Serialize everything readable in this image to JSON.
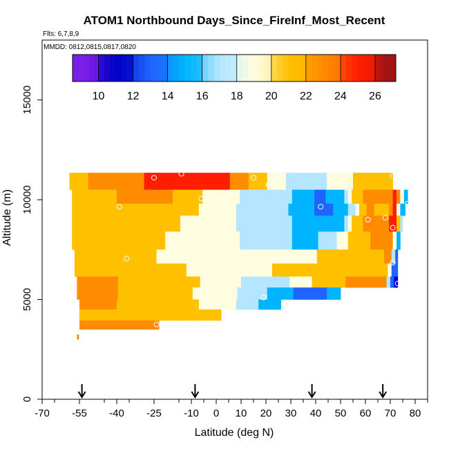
{
  "chart_data": {
    "type": "heatmap",
    "title": "ATOM1 Northbound Days_Since_FireInf_Most_Recent",
    "flights_label": "Flts: 6,7,8,9",
    "mmdd_label": "MMDD: 0812,0815,0817,0820",
    "xlabel": "Latitude (deg N)",
    "ylabel": "Altitude (m)",
    "xlim": [
      -70,
      85
    ],
    "ylim": [
      0,
      18000
    ],
    "x_ticks": [
      -70,
      -55,
      -40,
      -25,
      -10,
      0,
      10,
      20,
      30,
      40,
      50,
      60,
      70,
      80
    ],
    "x_tick_labels": [
      "-70",
      "-55",
      "-40",
      "-25",
      "-10",
      "0",
      "10",
      "20",
      "30",
      "40",
      "50",
      "60",
      "70",
      "80"
    ],
    "y_ticks": [
      0,
      5000,
      10000,
      15000
    ],
    "y_tick_labels": [
      "0",
      "5000",
      "10000",
      "15000"
    ],
    "colorbar": {
      "min": 8.5,
      "max": 27.2,
      "ticks": [
        10,
        12,
        14,
        16,
        18,
        20,
        22,
        24,
        26
      ],
      "tick_labels": [
        "10",
        "12",
        "14",
        "16",
        "18",
        "20",
        "22",
        "24",
        "26"
      ],
      "bin_edges": [
        8.5,
        10,
        12,
        14,
        16,
        18,
        20,
        22,
        24,
        26,
        27.2
      ],
      "colors": [
        "#7a1fe6",
        "#0000c8",
        "#1e64ff",
        "#00b4ff",
        "#b4e6ff",
        "#fffde0",
        "#ffc000",
        "#ff8c00",
        "#ff1e00",
        "#a01414"
      ]
    },
    "rows": [
      {
        "alt": [
          10500,
          11350
        ],
        "x": [
          -59,
          71
        ],
        "knots": [
          [
            -59,
            21.6
          ],
          [
            -35,
            23
          ],
          [
            -25,
            24.5
          ],
          [
            -10,
            25.5
          ],
          [
            5,
            24
          ],
          [
            20,
            20
          ],
          [
            30,
            17.5
          ],
          [
            45,
            18
          ],
          [
            60,
            21
          ],
          [
            71,
            22
          ]
        ]
      },
      {
        "alt": [
          9800,
          10500
        ],
        "x": [
          -58,
          77
        ],
        "knots": [
          [
            -58,
            21
          ],
          [
            -40,
            22
          ],
          [
            -20,
            22.5
          ],
          [
            -8,
            20.5
          ],
          [
            0,
            18.8
          ],
          [
            20,
            17
          ],
          [
            33,
            15.8
          ],
          [
            42,
            13.5
          ],
          [
            50,
            15
          ],
          [
            55,
            20
          ],
          [
            62,
            23.5
          ],
          [
            68,
            22
          ],
          [
            72,
            25
          ],
          [
            75,
            18
          ],
          [
            77,
            14
          ]
        ]
      },
      {
        "alt": [
          9200,
          9800
        ],
        "x": [
          -58,
          76
        ],
        "knots": [
          [
            -58,
            21
          ],
          [
            -40,
            21.5
          ],
          [
            -20,
            21.5
          ],
          [
            -5,
            19.8
          ],
          [
            5,
            18.2
          ],
          [
            25,
            16.5
          ],
          [
            35,
            15
          ],
          [
            42,
            13.5
          ],
          [
            52,
            14.5
          ],
          [
            57,
            19
          ],
          [
            62,
            23
          ],
          [
            68,
            20
          ],
          [
            72,
            24.5
          ],
          [
            74,
            17
          ],
          [
            76,
            14
          ]
        ]
      },
      {
        "alt": [
          8400,
          9200
        ],
        "x": [
          -58,
          75
        ],
        "knots": [
          [
            -58,
            21
          ],
          [
            -40,
            21
          ],
          [
            -20,
            20.5
          ],
          [
            -2,
            19
          ],
          [
            10,
            17.8
          ],
          [
            30,
            16.2
          ],
          [
            40,
            14.3
          ],
          [
            50,
            15
          ],
          [
            55,
            20.5
          ],
          [
            62,
            23.5
          ],
          [
            68,
            22
          ],
          [
            72,
            26
          ],
          [
            74,
            18
          ],
          [
            75,
            14
          ]
        ]
      },
      {
        "alt": [
          7500,
          8400
        ],
        "x": [
          -58,
          74
        ],
        "knots": [
          [
            -58,
            21
          ],
          [
            -40,
            20.5
          ],
          [
            -20,
            20
          ],
          [
            0,
            18.8
          ],
          [
            20,
            17.2
          ],
          [
            38,
            15.2
          ],
          [
            45,
            17
          ],
          [
            55,
            20.5
          ],
          [
            65,
            22.5
          ],
          [
            70,
            24
          ],
          [
            72,
            19
          ],
          [
            74,
            13
          ]
        ]
      },
      {
        "alt": [
          6800,
          7500
        ],
        "x": [
          -57,
          73
        ],
        "knots": [
          [
            -57,
            21.5
          ],
          [
            -40,
            21
          ],
          [
            -20,
            19.8
          ],
          [
            0,
            18.6
          ],
          [
            25,
            18.2
          ],
          [
            40,
            20
          ],
          [
            55,
            21.5
          ],
          [
            67,
            22
          ],
          [
            70,
            24
          ],
          [
            72,
            14
          ],
          [
            73,
            12
          ]
        ]
      },
      {
        "alt": [
          6150,
          6800
        ],
        "x": [
          -57,
          73
        ],
        "knots": [
          [
            -57,
            22
          ],
          [
            -40,
            21.5
          ],
          [
            -20,
            20.5
          ],
          [
            0,
            19.2
          ],
          [
            20,
            19.8
          ],
          [
            40,
            21.5
          ],
          [
            60,
            22
          ],
          [
            69,
            21.5
          ],
          [
            71,
            14
          ],
          [
            73,
            12
          ]
        ]
      },
      {
        "alt": [
          5600,
          6150
        ],
        "x": [
          -56,
          73
        ],
        "knots": [
          [
            -56,
            22
          ],
          [
            -40,
            22
          ],
          [
            -20,
            21
          ],
          [
            0,
            19.5
          ],
          [
            14,
            17.5
          ],
          [
            22,
            16
          ],
          [
            30,
            18
          ],
          [
            45,
            21.5
          ],
          [
            60,
            22.5
          ],
          [
            68,
            22
          ],
          [
            70,
            15
          ],
          [
            72,
            12
          ],
          [
            73,
            10
          ]
        ]
      },
      {
        "alt": [
          5000,
          5600
        ],
        "x": [
          -56,
          50
        ],
        "knots": [
          [
            -56,
            22
          ],
          [
            -40,
            22
          ],
          [
            -20,
            21
          ],
          [
            0,
            19.2
          ],
          [
            12,
            17.5
          ],
          [
            25,
            15
          ],
          [
            35,
            13.5
          ],
          [
            45,
            14
          ],
          [
            50,
            14
          ]
        ]
      },
      {
        "alt": [
          4500,
          5000
        ],
        "x": [
          -55,
          26
        ],
        "knots": [
          [
            -55,
            22
          ],
          [
            -40,
            22
          ],
          [
            -20,
            21
          ],
          [
            0,
            19.5
          ],
          [
            15,
            16.5
          ],
          [
            22,
            15.2
          ],
          [
            26,
            15
          ]
        ]
      },
      {
        "alt": [
          3950,
          4500
        ],
        "x": [
          -55,
          2
        ],
        "knots": [
          [
            -55,
            22
          ],
          [
            -40,
            21.8
          ],
          [
            -20,
            21
          ],
          [
            -10,
            20.5
          ],
          [
            2,
            20
          ]
        ]
      },
      {
        "alt": [
          3500,
          3950
        ],
        "x": [
          -55,
          -23
        ],
        "knots": [
          [
            -55,
            22.5
          ],
          [
            -40,
            22.5
          ],
          [
            -23,
            22
          ]
        ]
      },
      {
        "alt": [
          3000,
          3250
        ],
        "x": [
          -56,
          -55.3
        ],
        "knots": [
          [
            -56,
            23
          ],
          [
            -55.3,
            23
          ]
        ]
      },
      {
        "alt": [
          11350,
          11450
        ],
        "x": [
          29,
          30
        ],
        "knots": [
          [
            29,
            19.5
          ],
          [
            30,
            19.5
          ]
        ]
      }
    ],
    "samples": [
      {
        "x": -25,
        "y": 11100
      },
      {
        "x": -14,
        "y": 11300
      },
      {
        "x": 15,
        "y": 11100
      },
      {
        "x": 21,
        "y": 10750
      },
      {
        "x": -6,
        "y": 10050
      },
      {
        "x": 1,
        "y": 10050
      },
      {
        "x": -39,
        "y": 9650
      },
      {
        "x": 42,
        "y": 9650
      },
      {
        "x": 61,
        "y": 9000
      },
      {
        "x": 68,
        "y": 9100
      },
      {
        "x": 71,
        "y": 8600
      },
      {
        "x": 71,
        "y": 11200
      },
      {
        "x": -36,
        "y": 7050
      },
      {
        "x": 71,
        "y": 6850
      },
      {
        "x": 73,
        "y": 5800
      },
      {
        "x": 19,
        "y": 5100
      },
      {
        "x": -24,
        "y": 3750
      },
      {
        "x": 77,
        "y": 9800
      }
    ],
    "markers": [
      {
        "x": -54,
        "kind": "down-arrow"
      },
      {
        "x": -8.5,
        "kind": "down-arrow"
      },
      {
        "x": 38.5,
        "kind": "down-arrow"
      },
      {
        "x": 67,
        "kind": "down-arrow"
      }
    ]
  }
}
